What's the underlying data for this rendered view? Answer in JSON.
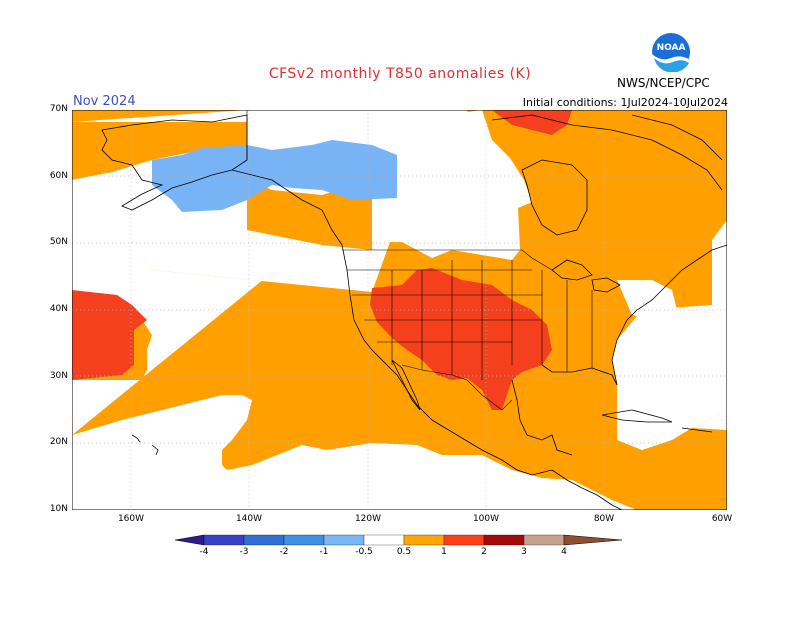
{
  "title": "CFSv2 monthly T850 anomalies (K)",
  "month": "Nov 2024",
  "initial_conditions": "Initial conditions: 1Jul2024-10Jul2024",
  "org": "NWS/NCEP/CPC",
  "logo_text": "NOAA",
  "lat_labels": [
    "70N",
    "60N",
    "50N",
    "40N",
    "30N",
    "20N",
    "10N"
  ],
  "lon_labels": [
    "160W",
    "140W",
    "120W",
    "100W",
    "80W",
    "60W"
  ],
  "colorbar": {
    "labels": [
      "-4",
      "-3",
      "-2",
      "-1",
      "-0.5",
      "0.5",
      "1",
      "2",
      "3",
      "4"
    ],
    "colors": [
      "#2a1c8c",
      "#3a3fc8",
      "#2f6fd6",
      "#3f8fe6",
      "#7ab8f5",
      "#ffffff",
      "#ffa500",
      "#ff3f1a",
      "#a50a0a",
      "#c8a090",
      "#8c5030"
    ]
  },
  "colors": {
    "orange": "#ffa000",
    "red": "#f5401e",
    "light_blue": "#78b4f5",
    "title": "#e03030",
    "month": "#3a4fc0"
  }
}
